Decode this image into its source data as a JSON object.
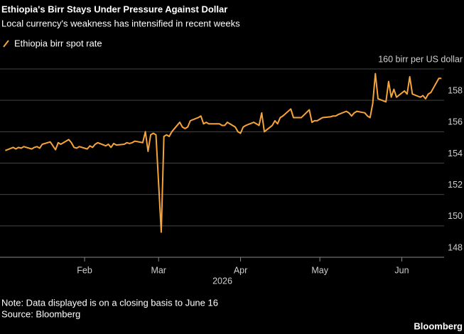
{
  "chart_data": {
    "type": "line",
    "title": "Ethiopia's Birr Stays Under Pressure Against Dollar",
    "subtitle": "Local currency's weakness has intensified in recent weeks",
    "xlabel": "2026",
    "note": "Note: Data displayed is on a closing basis to June 16",
    "source": "Source: Bloomberg",
    "brand": "Bloomberg",
    "xlim": [
      0,
      168
    ],
    "xticks": [
      {
        "value": 32,
        "label": "Feb"
      },
      {
        "value": 60,
        "label": "Mar"
      },
      {
        "value": 91,
        "label": "Apr"
      },
      {
        "value": 121,
        "label": "May"
      },
      {
        "value": 152,
        "label": "Jun"
      }
    ],
    "ylim": [
      148,
      160
    ],
    "yticks": [
      148,
      150,
      152,
      154,
      156,
      158,
      {
        "value": 160,
        "label": "160 birr per US dollar"
      }
    ],
    "grid": true,
    "legend": "top-left",
    "x": [
      2,
      5,
      6,
      7,
      8,
      9,
      12,
      13,
      14,
      15,
      16,
      19,
      20,
      21,
      22,
      23,
      26,
      27,
      28,
      29,
      30,
      33,
      34,
      35,
      36,
      37,
      40,
      41,
      42,
      43,
      44,
      47,
      48,
      49,
      50,
      51,
      54,
      55,
      56,
      57,
      58,
      59,
      61,
      62,
      63,
      64,
      65,
      68,
      69,
      70,
      71,
      72,
      75,
      76,
      77,
      78,
      79,
      82,
      83,
      84,
      85,
      86,
      89,
      90,
      91,
      92,
      93,
      96,
      97,
      98,
      99,
      100,
      103,
      104,
      105,
      106,
      107,
      110,
      111,
      112,
      113,
      114,
      117,
      118,
      119,
      120,
      122,
      125,
      126,
      127,
      128,
      131,
      132,
      133,
      134,
      135,
      138,
      139,
      140,
      141,
      142,
      143,
      146,
      147,
      148,
      149,
      150,
      153,
      154,
      155,
      156,
      159,
      160,
      161,
      162,
      163,
      166,
      167
    ],
    "series": [
      {
        "name": "Ethiopia birr spot rate",
        "color": "#f6a43a",
        "values": [
          154.8,
          155.0,
          154.9,
          155.0,
          154.95,
          155.05,
          154.9,
          155.0,
          155.05,
          154.95,
          155.2,
          155.35,
          155.1,
          154.85,
          155.3,
          155.2,
          155.5,
          155.3,
          155.0,
          154.95,
          155.05,
          154.9,
          155.1,
          155.0,
          155.2,
          155.3,
          155.1,
          155.2,
          155.0,
          155.25,
          155.15,
          155.2,
          155.3,
          155.25,
          155.3,
          155.4,
          155.3,
          156.0,
          154.75,
          155.8,
          155.9,
          155.8,
          149.6,
          155.7,
          155.8,
          155.7,
          156.0,
          156.6,
          156.3,
          156.2,
          156.3,
          156.7,
          156.9,
          157.0,
          156.5,
          156.6,
          156.5,
          156.5,
          156.5,
          156.4,
          156.4,
          156.6,
          156.3,
          156.0,
          155.9,
          156.3,
          156.4,
          156.6,
          156.5,
          156.4,
          157.2,
          156.0,
          156.4,
          156.7,
          156.5,
          156.9,
          157.0,
          157.45,
          156.9,
          156.9,
          156.9,
          156.9,
          157.4,
          156.6,
          156.7,
          156.7,
          156.9,
          156.95,
          157.0,
          157.0,
          157.1,
          157.3,
          157.2,
          157.0,
          157.2,
          157.3,
          157.2,
          157.0,
          156.9,
          157.8,
          159.7,
          158.1,
          157.9,
          159.2,
          158.2,
          158.7,
          158.2,
          158.6,
          158.4,
          159.5,
          158.4,
          158.2,
          158.3,
          158.1,
          158.4,
          158.5,
          159.4,
          159.4
        ]
      }
    ]
  }
}
